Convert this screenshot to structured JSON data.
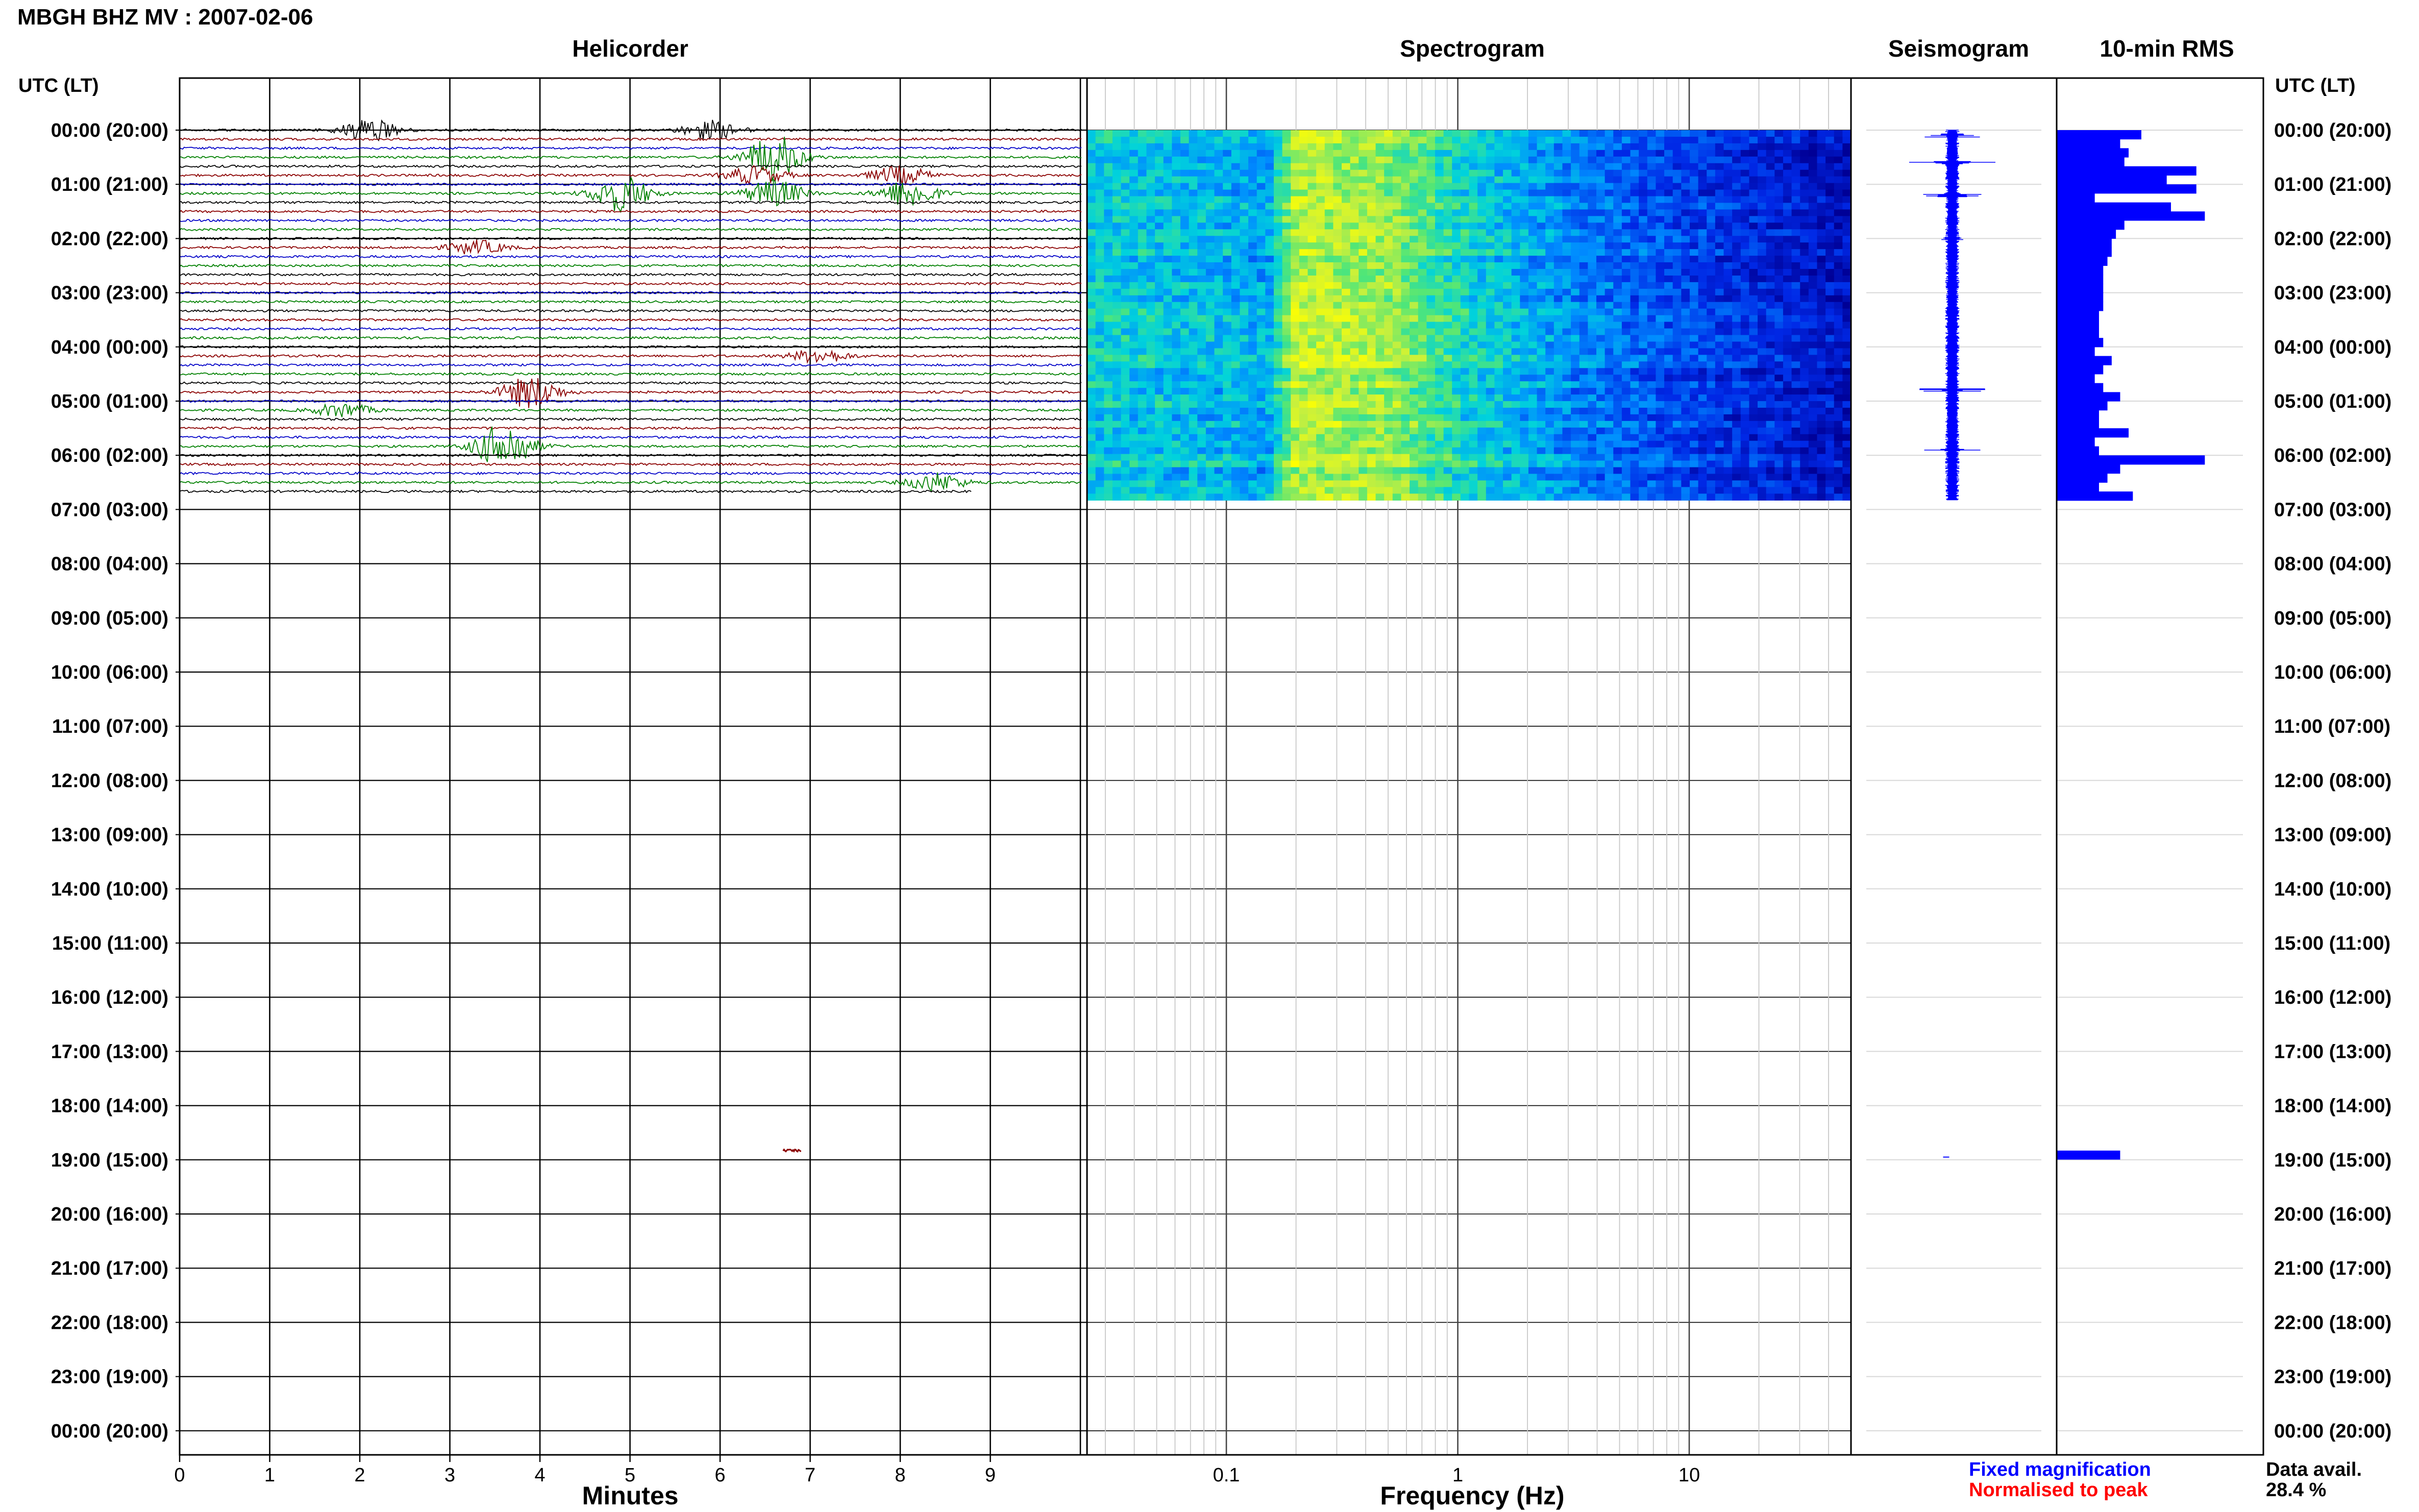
{
  "page_title": "MBGH BHZ MV : 2007-02-06",
  "panel_titles": {
    "helicorder": "Helicorder",
    "spectrogram": "Spectrogram",
    "seismogram": "Seismogram",
    "rms": "10-min RMS"
  },
  "axis_labels": {
    "time_left": "UTC (LT)",
    "time_right": "UTC (LT)",
    "minutes": "Minutes",
    "frequency": "Frequency (Hz)"
  },
  "legend": {
    "fixed": "Fixed magnification",
    "normalised": "Normalised to peak",
    "data_avail_label": "Data avail.",
    "data_avail_value": "28.4 %"
  },
  "colors": {
    "trace_cycle": [
      "#000000",
      "#8b0000",
      "#0000c8",
      "#008000"
    ],
    "seismogram": "#0000ff",
    "rms": "#0000ff",
    "legend_fixed": "#0000ff",
    "legend_normalised": "#ff0000"
  },
  "chart_data": [
    {
      "type": "line",
      "name": "helicorder",
      "x_ticks": [
        "0",
        "1",
        "2",
        "3",
        "4",
        "5",
        "6",
        "7",
        "8",
        "9"
      ],
      "xlim": [
        0,
        10
      ],
      "time_ticks_left": [
        "00:00 (20:00)",
        "01:00 (21:00)",
        "02:00 (22:00)",
        "03:00 (23:00)",
        "04:00 (00:00)",
        "05:00 (01:00)",
        "06:00 (02:00)",
        "07:00 (03:00)",
        "08:00 (04:00)",
        "09:00 (05:00)",
        "10:00 (06:00)",
        "11:00 (07:00)",
        "12:00 (08:00)",
        "13:00 (09:00)",
        "14:00 (10:00)",
        "15:00 (11:00)",
        "16:00 (12:00)",
        "17:00 (13:00)",
        "18:00 (14:00)",
        "19:00 (15:00)",
        "20:00 (16:00)",
        "21:00 (17:00)",
        "22:00 (18:00)",
        "23:00 (19:00)",
        "00:00 (20:00)"
      ],
      "rows_with_data_hours": [
        0,
        6.83
      ],
      "lines_per_hour": 6,
      "events": [
        {
          "hour": 0.0,
          "minute": 2.1,
          "amplitude": 2.5
        },
        {
          "hour": 0.0,
          "minute": 5.9,
          "amplitude": 2.0
        },
        {
          "hour": 0.5,
          "minute": 6.6,
          "amplitude": 5.0
        },
        {
          "hour": 0.83,
          "minute": 6.4,
          "amplitude": 2.0
        },
        {
          "hour": 0.83,
          "minute": 8.0,
          "amplitude": 2.0
        },
        {
          "hour": 1.17,
          "minute": 4.9,
          "amplitude": 4.0
        },
        {
          "hour": 1.17,
          "minute": 6.6,
          "amplitude": 3.0
        },
        {
          "hour": 1.17,
          "minute": 8.1,
          "amplitude": 3.0
        },
        {
          "hour": 2.17,
          "minute": 3.3,
          "amplitude": 1.5
        },
        {
          "hour": 4.17,
          "minute": 7.1,
          "amplitude": 1.5
        },
        {
          "hour": 4.83,
          "minute": 3.9,
          "amplitude": 3.5
        },
        {
          "hour": 5.17,
          "minute": 1.8,
          "amplitude": 1.5
        },
        {
          "hour": 5.83,
          "minute": 3.6,
          "amplitude": 5.0
        },
        {
          "hour": 6.5,
          "minute": 8.4,
          "amplitude": 2.0
        },
        {
          "hour": 18.83,
          "minute": 6.8,
          "amplitude": 1.0
        }
      ]
    },
    {
      "type": "heatmap",
      "name": "spectrogram",
      "x_scale": "log",
      "x_ticks": [
        0.1,
        1,
        10
      ],
      "xlim": [
        0.025,
        50
      ],
      "data_hours": [
        0,
        6.83
      ],
      "colormap": "blue-cyan-green-yellow",
      "band_profile": [
        {
          "freq": 0.03,
          "level": 0.55
        },
        {
          "freq": 0.1,
          "level": 0.5
        },
        {
          "freq": 0.15,
          "level": 0.45
        },
        {
          "freq": 0.2,
          "level": 0.85
        },
        {
          "freq": 0.5,
          "level": 0.8
        },
        {
          "freq": 1,
          "level": 0.6
        },
        {
          "freq": 3,
          "level": 0.4
        },
        {
          "freq": 10,
          "level": 0.25
        },
        {
          "freq": 50,
          "level": 0.1
        }
      ]
    },
    {
      "type": "line",
      "name": "seismogram",
      "data_hours": [
        0,
        6.83
      ],
      "spikes": [
        {
          "hour": 0.1,
          "amplitude": 0.6
        },
        {
          "hour": 0.6,
          "amplitude": 0.9
        },
        {
          "hour": 1.2,
          "amplitude": 0.5
        },
        {
          "hour": 2.0,
          "amplitude": 0.3
        },
        {
          "hour": 4.8,
          "amplitude": 0.6
        },
        {
          "hour": 5.9,
          "amplitude": 1.0
        },
        {
          "hour": 18.95,
          "amplitude": 0.2
        }
      ]
    },
    {
      "type": "bar",
      "name": "10-min RMS",
      "bin_hours": 0.1667,
      "values": [
        1.0,
        0.75,
        0.85,
        0.8,
        1.65,
        1.3,
        1.65,
        0.45,
        1.35,
        1.75,
        0.8,
        0.7,
        0.65,
        0.65,
        0.6,
        0.55,
        0.55,
        0.55,
        0.55,
        0.55,
        0.5,
        0.5,
        0.5,
        0.55,
        0.45,
        0.65,
        0.55,
        0.45,
        0.55,
        0.75,
        0.6,
        0.5,
        0.5,
        0.85,
        0.45,
        0.5,
        1.75,
        0.75,
        0.6,
        0.5,
        0.9
      ],
      "isolated_bars": [
        {
          "hour": 18.83,
          "value": 0.75
        }
      ],
      "xlim": [
        0,
        2.2
      ]
    }
  ]
}
